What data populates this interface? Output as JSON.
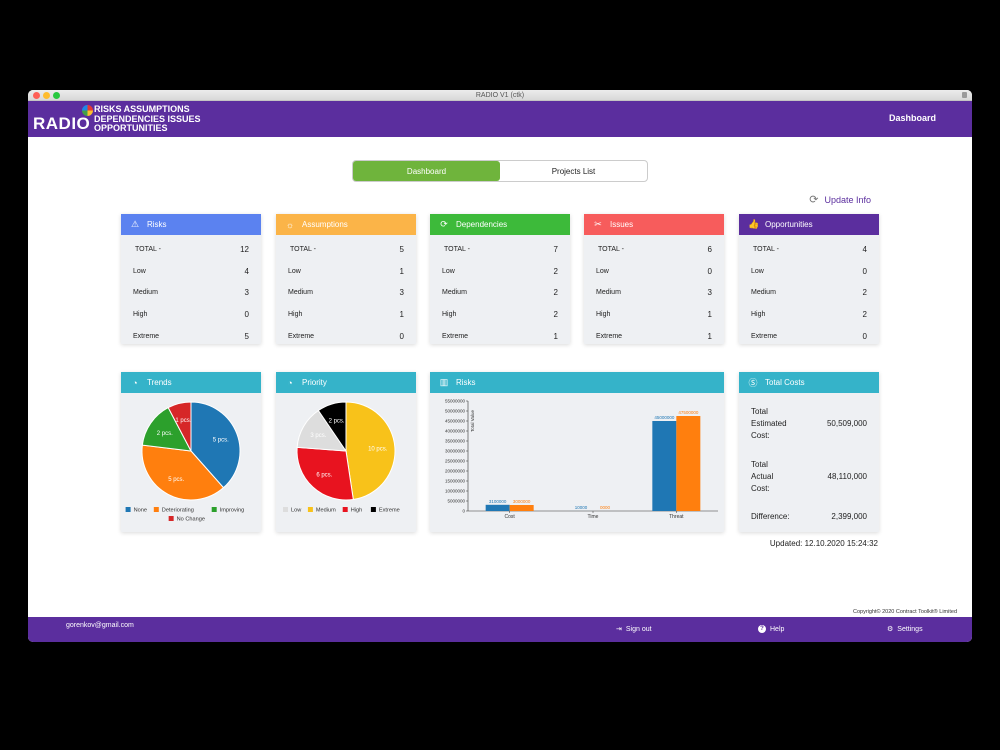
{
  "window": {
    "title": "RADIO V1 (ctk)"
  },
  "header": {
    "logo": "RADIO",
    "tagline": [
      "RISKS ASSUMPTIONS",
      "DEPENDENCIES ISSUES",
      "OPPORTUNITIES"
    ],
    "page": "Dashboard"
  },
  "tabs": [
    {
      "label": "Dashboard",
      "active": true
    },
    {
      "label": "Projects List",
      "active": false
    }
  ],
  "update_label": "Update Info",
  "summary_cards": [
    {
      "title": "Risks",
      "color": "#5b82f0",
      "icon": "warning-icon",
      "rows": [
        {
          "k": "TOTAL -",
          "v": "12"
        },
        {
          "k": "Low",
          "v": "4"
        },
        {
          "k": "Medium",
          "v": "3"
        },
        {
          "k": "High",
          "v": "0"
        },
        {
          "k": "Extreme",
          "v": "5"
        }
      ]
    },
    {
      "title": "Assumptions",
      "color": "#fbb448",
      "icon": "lightbulb-icon",
      "rows": [
        {
          "k": "TOTAL -",
          "v": "5"
        },
        {
          "k": "Low",
          "v": "1"
        },
        {
          "k": "Medium",
          "v": "3"
        },
        {
          "k": "High",
          "v": "1"
        },
        {
          "k": "Extreme",
          "v": "0"
        }
      ]
    },
    {
      "title": "Dependencies",
      "color": "#3dba3a",
      "icon": "refresh-icon",
      "rows": [
        {
          "k": "TOTAL -",
          "v": "7"
        },
        {
          "k": "Low",
          "v": "2"
        },
        {
          "k": "Medium",
          "v": "2"
        },
        {
          "k": "High",
          "v": "2"
        },
        {
          "k": "Extreme",
          "v": "1"
        }
      ]
    },
    {
      "title": "Issues",
      "color": "#f75c5c",
      "icon": "tools-icon",
      "rows": [
        {
          "k": "TOTAL -",
          "v": "6"
        },
        {
          "k": "Low",
          "v": "0"
        },
        {
          "k": "Medium",
          "v": "3"
        },
        {
          "k": "High",
          "v": "1"
        },
        {
          "k": "Extreme",
          "v": "1"
        }
      ]
    },
    {
      "title": "Opportunities",
      "color": "#5b2e9e",
      "icon": "thumbs-up-icon",
      "rows": [
        {
          "k": "TOTAL -",
          "v": "4"
        },
        {
          "k": "Low",
          "v": "0"
        },
        {
          "k": "Medium",
          "v": "2"
        },
        {
          "k": "High",
          "v": "2"
        },
        {
          "k": "Extreme",
          "v": "0"
        }
      ]
    }
  ],
  "bottom_cards": {
    "color": "#35b3c9",
    "trends": "Trends",
    "priority": "Priority",
    "risks": "Risks",
    "costs": "Total Costs"
  },
  "chart_data": [
    {
      "type": "pie",
      "title": "Trends",
      "slices": [
        {
          "label": "None",
          "value": 5,
          "text": "5 pcs.",
          "color": "#1f77b4"
        },
        {
          "label": "Deteriorating",
          "value": 5,
          "text": "5 pcs.",
          "color": "#ff7f0e"
        },
        {
          "label": "Improving",
          "value": 2,
          "text": "2 pcs.",
          "color": "#2ca02c"
        },
        {
          "label": "No Change",
          "value": 1,
          "text": "1 pcs.",
          "color": "#d62728"
        }
      ]
    },
    {
      "type": "pie",
      "title": "Priority",
      "slices": [
        {
          "label": "Medium",
          "value": 10,
          "text": "10 pcs.",
          "color": "#f8c21a"
        },
        {
          "label": "High",
          "value": 6,
          "text": "6 pcs.",
          "color": "#e8131f"
        },
        {
          "label": "Low",
          "value": 3,
          "text": "3 pcs.",
          "color": "#dddddd"
        },
        {
          "label": "Extreme",
          "value": 2,
          "text": "2 pcs.",
          "color": "#000000"
        }
      ],
      "legend_order": [
        "Low",
        "Medium",
        "High",
        "Extreme"
      ]
    },
    {
      "type": "bar",
      "title": "Risks",
      "ylabel": "Total Value",
      "categories": [
        "Cost",
        "Time",
        "Threat"
      ],
      "series": [
        {
          "values": [
            3100000,
            10000,
            45000000
          ],
          "color": "#1f77b4"
        },
        {
          "values": [
            3000000,
            0,
            47500000
          ],
          "color": "#ff7f0e"
        }
      ],
      "ylim": [
        0,
        55000000
      ],
      "yticks": [
        "0",
        "5000000",
        "10000000",
        "15000000",
        "20000000",
        "25000000",
        "30000000",
        "35000000",
        "40000000",
        "45000000",
        "50000000",
        "55000000"
      ],
      "value_labels": [
        [
          "3100000",
          "10000",
          "45000000"
        ],
        [
          "3000000",
          "0000",
          "47500000"
        ]
      ]
    }
  ],
  "costs": {
    "estimated_label": [
      "Total",
      "Estimated",
      "Cost:"
    ],
    "estimated": "50,509,000",
    "actual_label": [
      "Total",
      "Actual",
      "Cost:"
    ],
    "actual": "48,110,000",
    "difference_label": "Difference:",
    "difference": "2,399,000"
  },
  "updated": "Updated: 12.10.2020 15:24:32",
  "copyright": "Copyright© 2020 Contract Toolkit® Limited",
  "footer": {
    "email": "gorenkov@gmail.com",
    "signout": "Sign out",
    "help": "Help",
    "settings": "Settings"
  }
}
